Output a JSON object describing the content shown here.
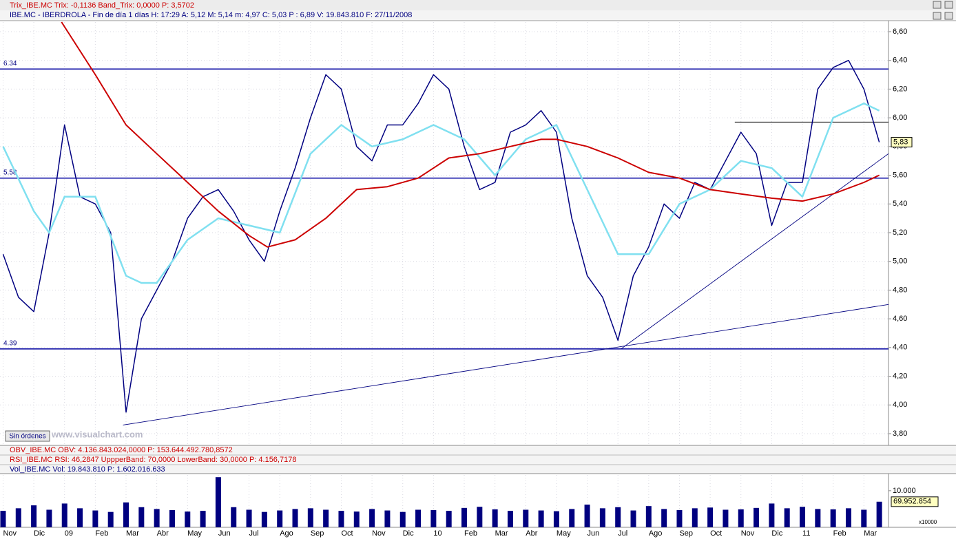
{
  "header": {
    "trix": "Trix_IBE.MC  Trix: -0,1136  Band_Trix: 0,0000  P: 3,5702",
    "info": "IBE.MC - IBERDROLA - Fin de día 1 días  H: 17:29  A: 5,12  M: 5,14  m: 4,97  C: 5,03  P : 6,89  V: 19.843.810  F: 27/11/2008"
  },
  "panels": {
    "obv": "OBV_IBE.MC  OBV: 4.136.843.024,0000  P: 153.644.492.780,8572",
    "rsi": "RSI_IBE.MC  RSI: 46,2847  UppperBand: 70,0000  LowerBand: 30,0000  P: 4.156,7178",
    "vol": "Vol_IBE.MC  Vol: 19.843.810  P: 1.602.016.633"
  },
  "button": "Sin órdenes",
  "watermark": "www.visualchart.com",
  "chart_data": [
    {
      "type": "line",
      "xlim": [
        -0.1,
        28.8
      ],
      "ylim": [
        3.728,
        6.667
      ],
      "grid": true,
      "xticks": [
        {
          "value": 0,
          "label": "Nov"
        },
        {
          "value": 1,
          "label": "Dic"
        },
        {
          "value": 2,
          "label": "09"
        },
        {
          "value": 3,
          "label": "Feb"
        },
        {
          "value": 4,
          "label": "Mar"
        },
        {
          "value": 5,
          "label": "Abr"
        },
        {
          "value": 6,
          "label": "May"
        },
        {
          "value": 7,
          "label": "Jun"
        },
        {
          "value": 8,
          "label": "Jul"
        },
        {
          "value": 9,
          "label": "Ago"
        },
        {
          "value": 10,
          "label": "Sep"
        },
        {
          "value": 11,
          "label": "Oct"
        },
        {
          "value": 12,
          "label": "Nov"
        },
        {
          "value": 13,
          "label": "Dic"
        },
        {
          "value": 14,
          "label": "10"
        },
        {
          "value": 15,
          "label": "Feb"
        },
        {
          "value": 16,
          "label": "Mar"
        },
        {
          "value": 17,
          "label": "Abr"
        },
        {
          "value": 18,
          "label": "May"
        },
        {
          "value": 19,
          "label": "Jun"
        },
        {
          "value": 20,
          "label": "Jul"
        },
        {
          "value": 21,
          "label": "Ago"
        },
        {
          "value": 22,
          "label": "Sep"
        },
        {
          "value": 23,
          "label": "Oct"
        },
        {
          "value": 24,
          "label": "Nov"
        },
        {
          "value": 25,
          "label": "Dic"
        },
        {
          "value": 26,
          "label": "11"
        },
        {
          "value": 27,
          "label": "Feb"
        },
        {
          "value": 28,
          "label": "Mar"
        }
      ],
      "yticks": [
        {
          "value": 3.8,
          "label": "3,80"
        },
        {
          "value": 4.0,
          "label": "4,00"
        },
        {
          "value": 4.2,
          "label": "4,20"
        },
        {
          "value": 4.4,
          "label": "4,40"
        },
        {
          "value": 4.6,
          "label": "4,60"
        },
        {
          "value": 4.8,
          "label": "4,80"
        },
        {
          "value": 5.0,
          "label": "5,00"
        },
        {
          "value": 5.2,
          "label": "5,20"
        },
        {
          "value": 5.4,
          "label": "5,40"
        },
        {
          "value": 5.6,
          "label": "5,60"
        },
        {
          "value": 5.8,
          "label": "5,80"
        },
        {
          "value": 6.0,
          "label": "6,00"
        },
        {
          "value": 6.2,
          "label": "6,20"
        },
        {
          "value": 6.4,
          "label": "6,40"
        },
        {
          "value": 6.6,
          "label": "6,60"
        }
      ],
      "series": [
        {
          "color": "#000080",
          "width": 1.5,
          "x": [
            0,
            0.5,
            1,
            1.5,
            2,
            2.5,
            3,
            3.5,
            4,
            4.5,
            5,
            5.5,
            6,
            6.5,
            7,
            7.5,
            8,
            8.5,
            9,
            9.5,
            10,
            10.5,
            11,
            11.5,
            12,
            12.5,
            13,
            13.5,
            14,
            14.5,
            15,
            15.5,
            16,
            16.5,
            17,
            17.5,
            18,
            18.5,
            19,
            19.5,
            20,
            20.5,
            21,
            21.5,
            22,
            22.5,
            23,
            23.5,
            24,
            24.5,
            25,
            25.5,
            26,
            26.5,
            27,
            27.5,
            28,
            28.5
          ],
          "values": [
            5.05,
            4.75,
            4.65,
            5.2,
            5.95,
            5.45,
            5.4,
            5.2,
            3.95,
            4.6,
            4.8,
            5.0,
            5.3,
            5.45,
            5.5,
            5.35,
            5.15,
            5.0,
            5.35,
            5.65,
            6.0,
            6.3,
            6.2,
            5.8,
            5.7,
            5.95,
            5.95,
            6.1,
            6.3,
            6.2,
            5.8,
            5.5,
            5.55,
            5.9,
            5.95,
            6.05,
            5.9,
            5.3,
            4.9,
            4.75,
            4.45,
            4.9,
            5.1,
            5.4,
            5.3,
            5.55,
            5.5,
            5.7,
            5.9,
            5.75,
            5.25,
            5.55,
            5.55,
            6.2,
            6.35,
            6.4,
            6.2,
            5.83
          ]
        },
        {
          "color": "#80e0f0",
          "width": 2.5,
          "x": [
            0,
            1,
            1.5,
            2,
            3,
            4,
            4.5,
            5,
            6,
            7,
            8,
            9,
            10,
            11,
            12,
            13,
            14,
            15,
            16,
            17,
            18,
            19,
            20,
            21,
            22,
            23,
            24,
            25,
            26,
            27,
            28,
            28.5
          ],
          "values": [
            5.8,
            5.35,
            5.2,
            5.45,
            5.45,
            4.9,
            4.85,
            4.85,
            5.15,
            5.3,
            5.25,
            5.2,
            5.75,
            5.95,
            5.8,
            5.85,
            5.95,
            5.85,
            5.6,
            5.85,
            5.95,
            5.5,
            5.05,
            5.05,
            5.4,
            5.5,
            5.7,
            5.65,
            5.45,
            6.0,
            6.1,
            6.05
          ]
        },
        {
          "color": "#cc0000",
          "width": 2,
          "x": [
            1.9,
            3,
            4,
            5,
            6,
            7,
            8,
            8.6,
            9.5,
            10.5,
            11.5,
            12.5,
            13.5,
            14.5,
            15.5,
            16.5,
            17.5,
            18,
            19,
            20,
            21,
            22,
            23,
            24,
            25,
            26,
            27,
            28,
            28.5
          ],
          "values": [
            6.667,
            6.3,
            5.95,
            5.75,
            5.55,
            5.35,
            5.18,
            5.1,
            5.15,
            5.3,
            5.5,
            5.52,
            5.58,
            5.72,
            5.75,
            5.8,
            5.85,
            5.85,
            5.8,
            5.72,
            5.62,
            5.58,
            5.5,
            5.47,
            5.44,
            5.42,
            5.47,
            5.55,
            5.6
          ]
        }
      ],
      "hlines": [
        {
          "value": 6.34,
          "label": "6.34"
        },
        {
          "value": 5.58,
          "label": "5.58"
        },
        {
          "value": 4.39,
          "label": "4.39"
        }
      ],
      "trendlines": [
        {
          "x": [
            3.9,
            28.8
          ],
          "y": [
            3.86,
            4.7
          ]
        },
        {
          "x": [
            20.1,
            28.8
          ],
          "y": [
            4.39,
            5.75
          ]
        },
        {
          "x": [
            23.8,
            28.8
          ],
          "y": [
            5.97,
            5.97
          ]
        }
      ],
      "last_value": {
        "value": 5.83,
        "label": "5,83"
      }
    },
    {
      "type": "bar",
      "color": "#000080",
      "xlim": [
        -0.1,
        28.8
      ],
      "ylim": [
        0,
        14300
      ],
      "yticks": [
        {
          "value": 10000,
          "label": "10.000"
        }
      ],
      "x": [
        0,
        0.5,
        1,
        1.5,
        2,
        2.5,
        3,
        3.5,
        4,
        4.5,
        5,
        5.5,
        6,
        6.5,
        7,
        7.5,
        8,
        8.5,
        9,
        9.5,
        10,
        10.5,
        11,
        11.5,
        12,
        12.5,
        13,
        13.5,
        14,
        14.5,
        15,
        15.5,
        16,
        16.5,
        17,
        17.5,
        18,
        18.5,
        19,
        19.5,
        20,
        20.5,
        21,
        21.5,
        22,
        22.5,
        23,
        23.5,
        24,
        24.5,
        25,
        25.5,
        26,
        26.5,
        27,
        27.5,
        28,
        28.5
      ],
      "values": [
        4500,
        5200,
        6000,
        4800,
        6500,
        5200,
        4600,
        4200,
        6800,
        5500,
        5000,
        4700,
        4300,
        4500,
        13700,
        5500,
        4800,
        4200,
        4600,
        5000,
        5200,
        4800,
        4500,
        4300,
        5000,
        4600,
        4200,
        4800,
        4700,
        4500,
        5300,
        5600,
        4900,
        4500,
        4800,
        4600,
        4400,
        5000,
        6200,
        5200,
        5500,
        4600,
        5800,
        5000,
        4700,
        5200,
        5400,
        4800,
        4900,
        5300,
        6500,
        5200,
        5600,
        5000,
        4900,
        5200,
        4800,
        7000
      ],
      "last_value": {
        "value": 6995.2854,
        "label": "69.952.854"
      },
      "scale_label": "x10000"
    }
  ]
}
